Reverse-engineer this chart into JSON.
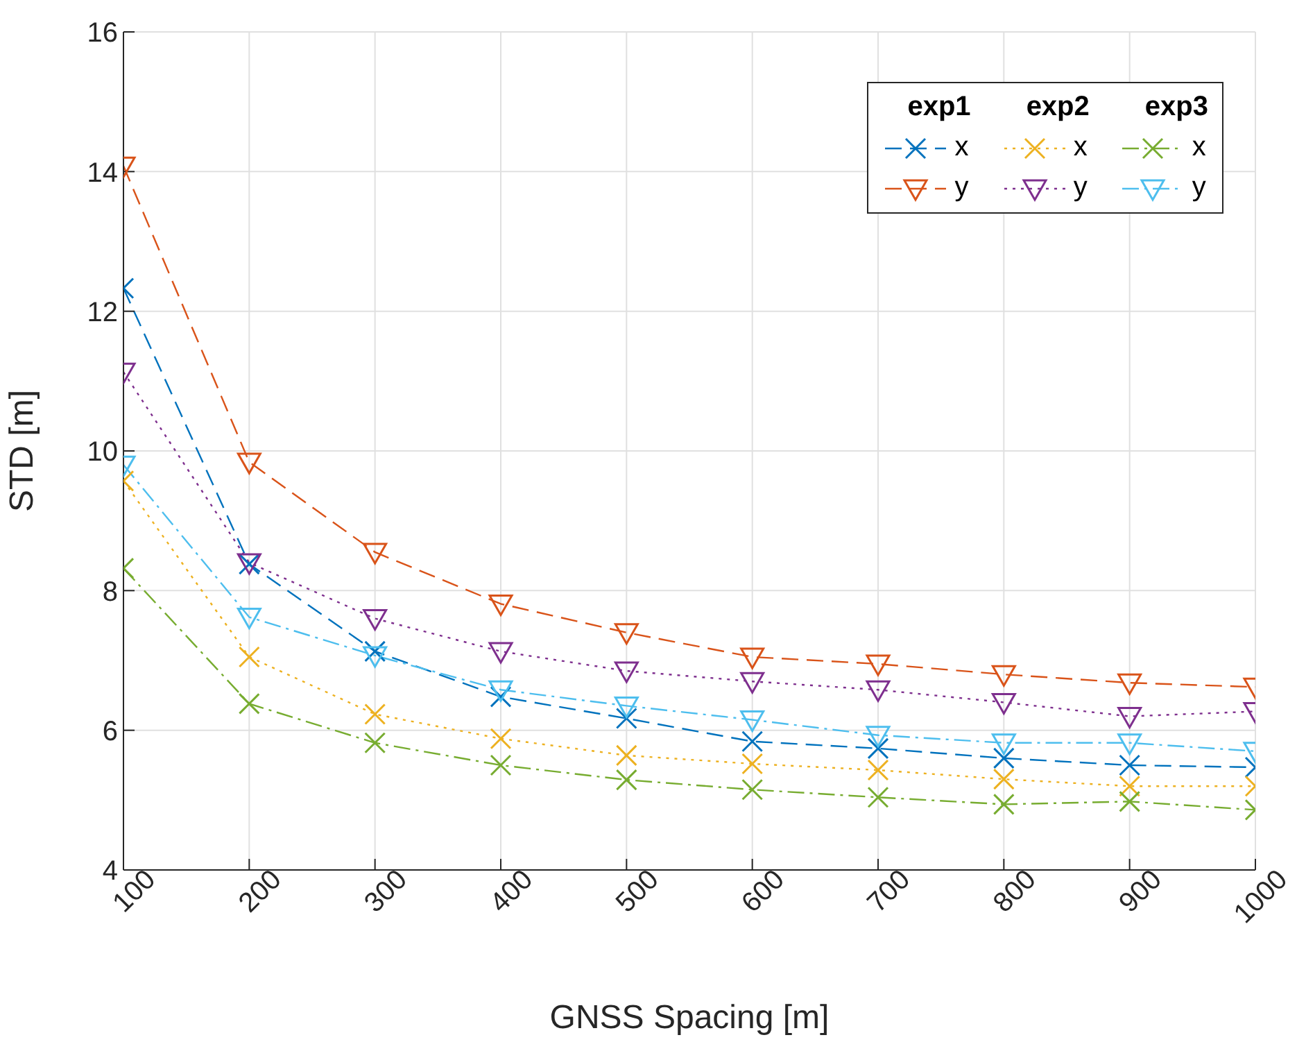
{
  "chart_data": {
    "type": "line",
    "xlabel": "GNSS Spacing [m]",
    "ylabel": "STD [m]",
    "x": [
      100,
      200,
      300,
      400,
      500,
      600,
      700,
      800,
      900,
      1000
    ],
    "series": [
      {
        "name": "x",
        "color": "#0072bd",
        "line_style": "dashed",
        "marker": "cross",
        "values": [
          12.33,
          8.38,
          7.13,
          6.48,
          6.17,
          5.84,
          5.74,
          5.6,
          5.5,
          5.47
        ]
      },
      {
        "name": "y",
        "color": "#d95319",
        "line_style": "dashed",
        "marker": "triangle",
        "values": [
          14.08,
          9.84,
          8.55,
          7.81,
          7.4,
          7.05,
          6.95,
          6.8,
          6.68,
          6.62
        ]
      },
      {
        "name": "x",
        "color": "#edb120",
        "line_style": "dotted",
        "marker": "cross",
        "values": [
          9.57,
          7.05,
          6.23,
          5.88,
          5.64,
          5.52,
          5.43,
          5.3,
          5.2,
          5.2
        ]
      },
      {
        "name": "y",
        "color": "#7e2f8e",
        "line_style": "dotted",
        "marker": "triangle",
        "values": [
          11.13,
          8.4,
          7.6,
          7.13,
          6.85,
          6.7,
          6.58,
          6.4,
          6.2,
          6.27
        ]
      },
      {
        "name": "x",
        "color": "#77ac30",
        "line_style": "dashdot",
        "marker": "cross",
        "values": [
          8.32,
          6.38,
          5.82,
          5.5,
          5.29,
          5.15,
          5.04,
          4.94,
          4.98,
          4.86
        ]
      },
      {
        "name": "y",
        "color": "#4dbeee",
        "line_style": "dashdot",
        "marker": "triangle",
        "values": [
          9.8,
          7.62,
          7.07,
          6.58,
          6.35,
          6.15,
          5.93,
          5.82,
          5.82,
          5.7
        ]
      }
    ],
    "annotations": [
      "exp1",
      "exp2",
      "exp3"
    ],
    "xlim": [
      100,
      1000
    ],
    "xticks": [
      100,
      200,
      300,
      400,
      500,
      600,
      700,
      800,
      900,
      1000
    ],
    "ylim": [
      4,
      16
    ],
    "yticks": [
      4,
      6,
      8,
      10,
      12,
      14,
      16
    ],
    "grid": true,
    "legend": "top right"
  }
}
